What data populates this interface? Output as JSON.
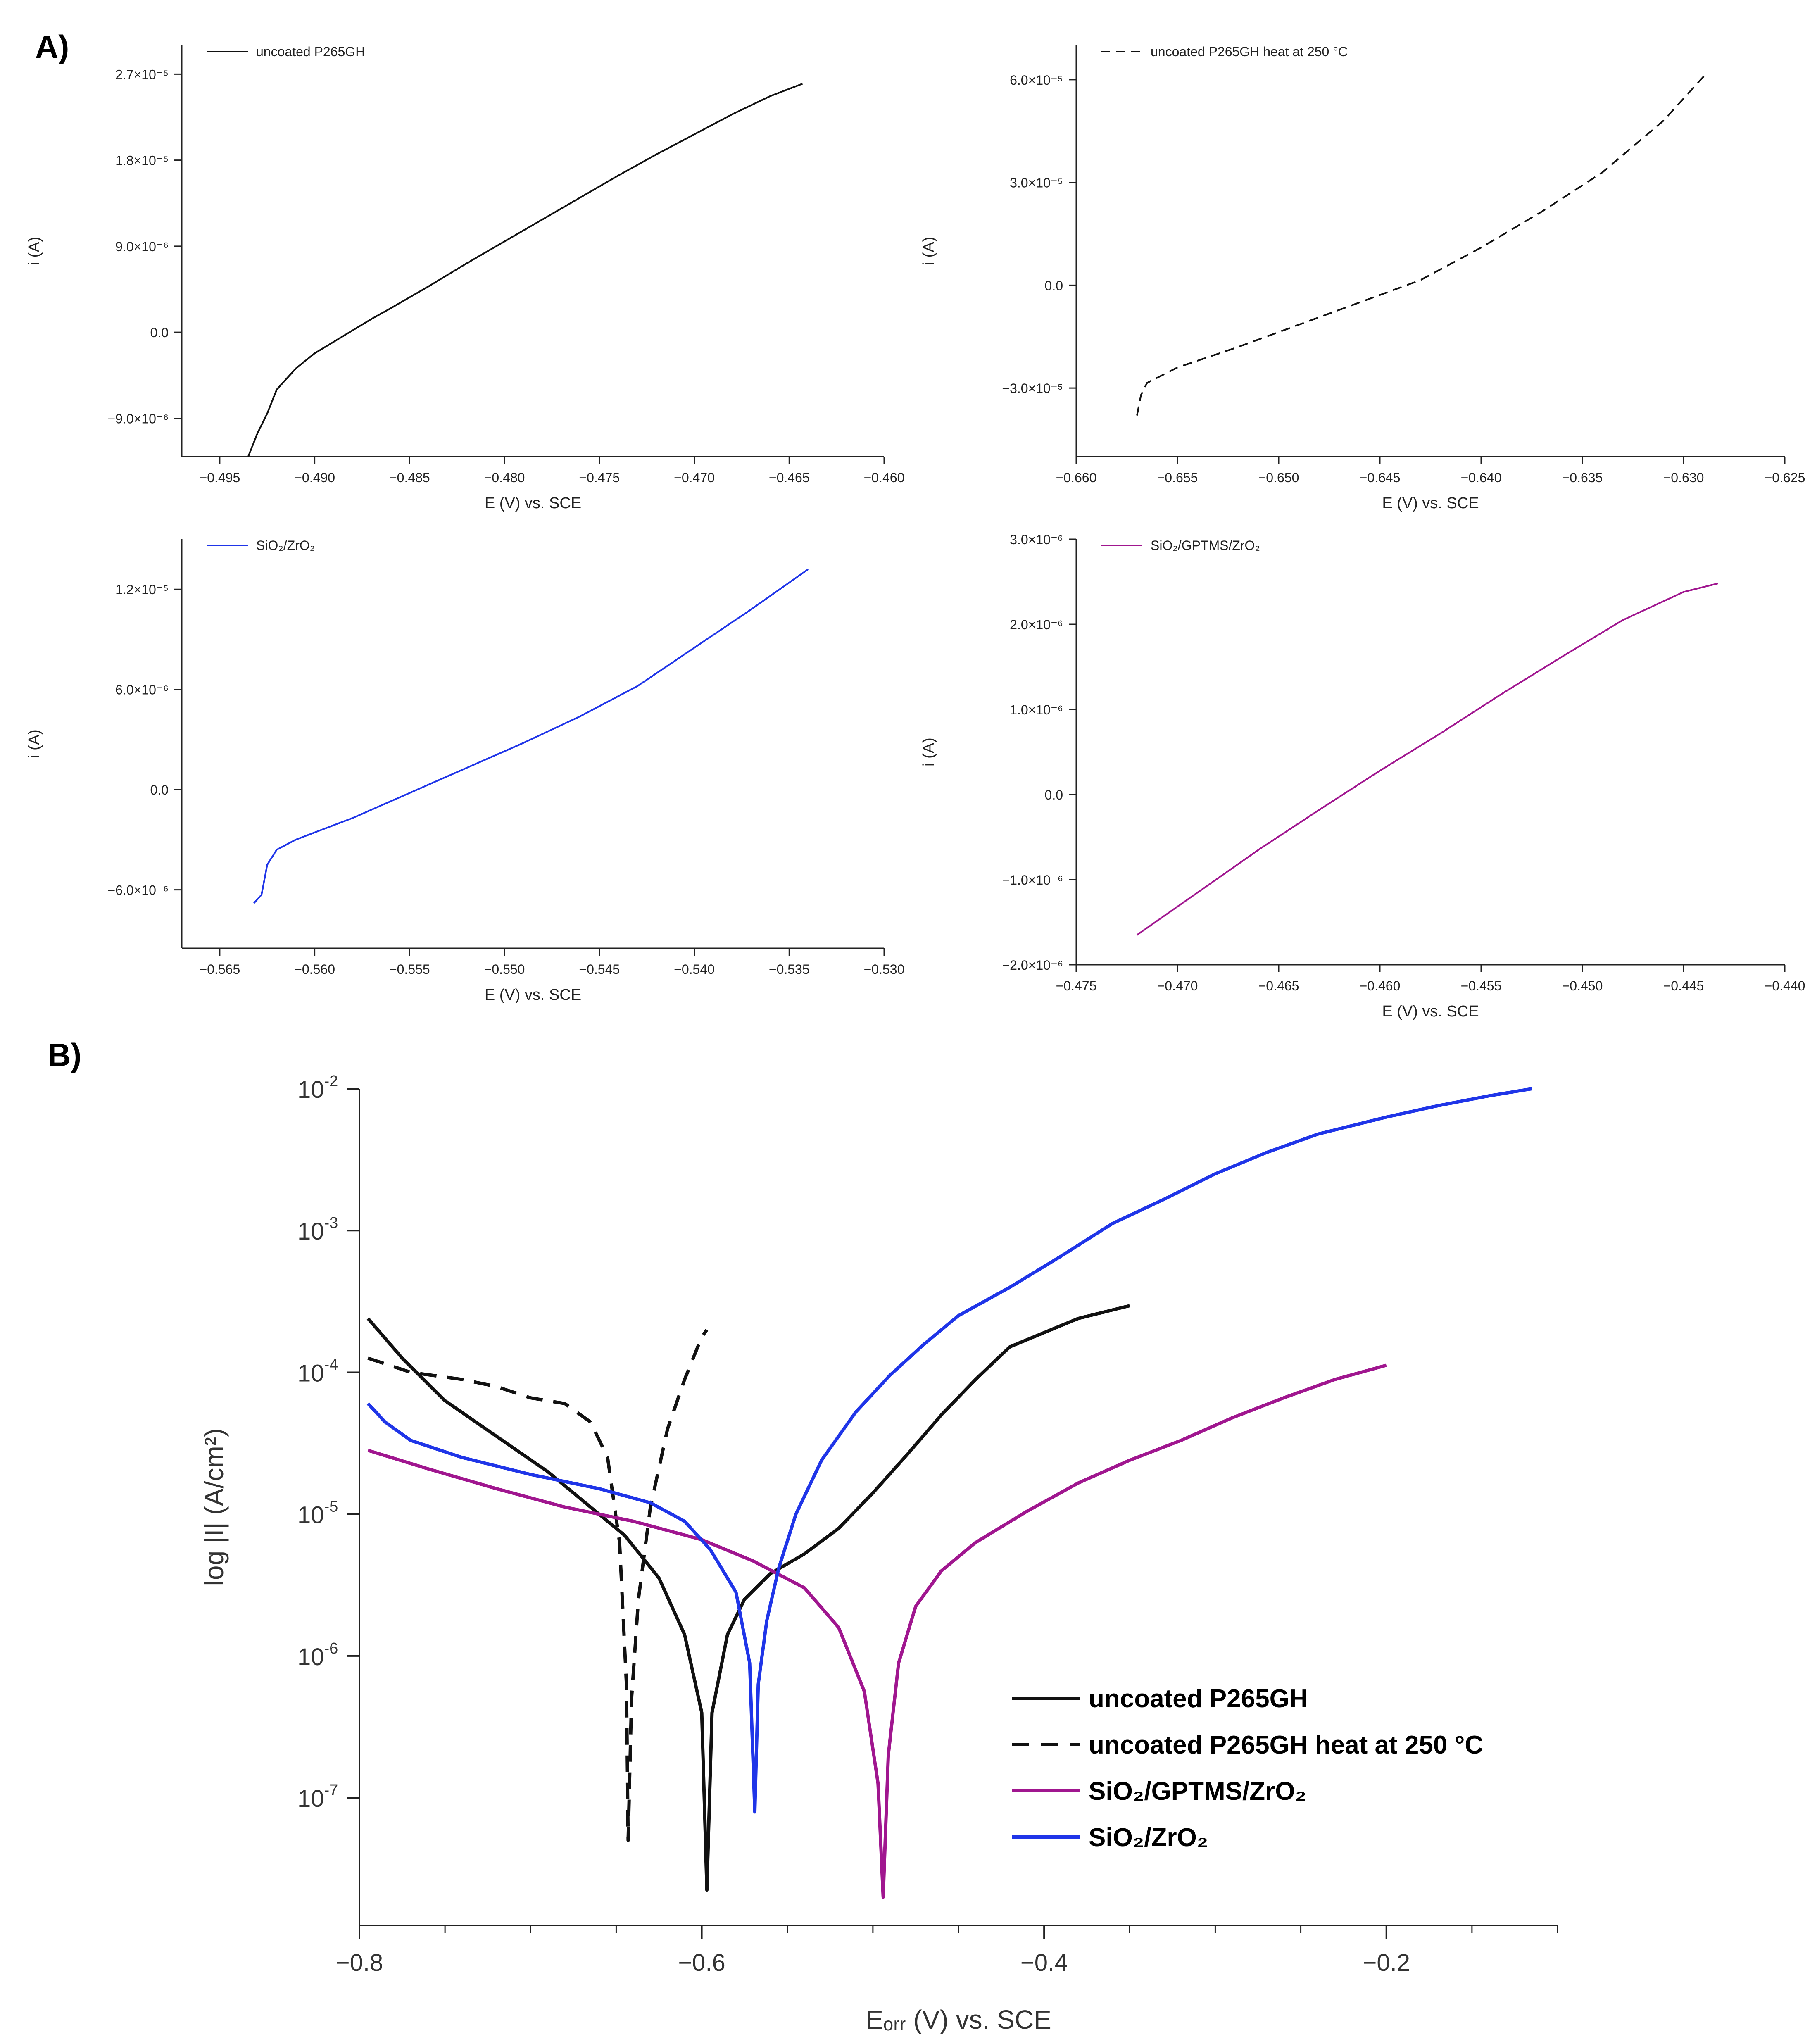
{
  "figure": {
    "panel_a_label": "A)",
    "panel_b_label": "B)"
  },
  "chart_data": [
    {
      "id": "a1",
      "type": "line",
      "title": "",
      "xlabel": "E (V) vs. SCE",
      "ylabel": "i (A)",
      "xlim": [
        -0.497,
        -0.46
      ],
      "ylim": [
        -1.3e-05,
        3e-05
      ],
      "xticks": [
        -0.495,
        -0.49,
        -0.485,
        -0.48,
        -0.475,
        -0.47,
        -0.465,
        -0.46
      ],
      "xtick_labels": [
        "−0.495",
        "−0.490",
        "−0.485",
        "−0.480",
        "−0.475",
        "−0.470",
        "−0.465",
        "−0.460"
      ],
      "yticks": [
        -9e-06,
        0,
        9e-06,
        1.8e-05,
        2.7e-05
      ],
      "ytick_labels": [
        "−9.0×10⁻⁶",
        "0.0",
        "9.0×10⁻⁶",
        "1.8×10⁻⁵",
        "2.7×10⁻⁵"
      ],
      "legend_position": "top-left",
      "series": [
        {
          "name": "uncoated P265GH",
          "color": "#111111",
          "dash": "solid",
          "x": [
            -0.4935,
            -0.493,
            -0.4925,
            -0.492,
            -0.491,
            -0.49,
            -0.489,
            -0.488,
            -0.487,
            -0.486,
            -0.484,
            -0.482,
            -0.48,
            -0.478,
            -0.476,
            -0.474,
            -0.472,
            -0.47,
            -0.468,
            -0.466,
            -0.4643
          ],
          "y": [
            -1.3e-05,
            -1.05e-05,
            -8.5e-06,
            -6e-06,
            -3.8e-06,
            -2.2e-06,
            -1e-06,
            2e-07,
            1.4e-06,
            2.5e-06,
            4.8e-06,
            7.2e-06,
            9.5e-06,
            1.18e-05,
            1.41e-05,
            1.64e-05,
            1.86e-05,
            2.07e-05,
            2.28e-05,
            2.47e-05,
            2.6e-05
          ]
        }
      ]
    },
    {
      "id": "a2",
      "type": "line",
      "title": "",
      "xlabel": "E (V) vs. SCE",
      "ylabel": "i (A)",
      "xlim": [
        -0.66,
        -0.625
      ],
      "ylim": [
        -5e-05,
        7e-05
      ],
      "xticks": [
        -0.66,
        -0.655,
        -0.65,
        -0.645,
        -0.64,
        -0.635,
        -0.63,
        -0.625
      ],
      "xtick_labels": [
        "−0.660",
        "−0.655",
        "−0.650",
        "−0.645",
        "−0.640",
        "−0.635",
        "−0.630",
        "−0.625"
      ],
      "yticks": [
        -3e-05,
        0,
        3e-05,
        6e-05
      ],
      "ytick_labels": [
        "−3.0×10⁻⁵",
        "0.0",
        "3.0×10⁻⁵",
        "6.0×10⁻⁵"
      ],
      "legend_position": "top-left",
      "series": [
        {
          "name": "uncoated P265GH heat at 250 °C",
          "color": "#111111",
          "dash": "dashed",
          "x": [
            -0.657,
            -0.6568,
            -0.6565,
            -0.655,
            -0.652,
            -0.649,
            -0.646,
            -0.643,
            -0.64,
            -0.637,
            -0.634,
            -0.631,
            -0.629
          ],
          "y": [
            -3.8e-05,
            -3.2e-05,
            -2.85e-05,
            -2.4e-05,
            -1.8e-05,
            -1.15e-05,
            -5e-06,
            1.5e-06,
            1.1e-05,
            2.15e-05,
            3.3e-05,
            4.8e-05,
            6.1e-05
          ]
        }
      ]
    },
    {
      "id": "a3",
      "type": "line",
      "title": "",
      "xlabel": "E (V) vs. SCE",
      "ylabel": "i (A)",
      "xlim": [
        -0.567,
        -0.53
      ],
      "ylim": [
        -9.5e-06,
        1.5e-05
      ],
      "xticks": [
        -0.565,
        -0.56,
        -0.555,
        -0.55,
        -0.545,
        -0.54,
        -0.535,
        -0.53
      ],
      "xtick_labels": [
        "−0.565",
        "−0.560",
        "−0.555",
        "−0.550",
        "−0.545",
        "−0.540",
        "−0.535",
        "−0.530"
      ],
      "yticks": [
        -6e-06,
        0,
        6e-06,
        1.2e-05
      ],
      "ytick_labels": [
        "−6.0×10⁻⁶",
        "0.0",
        "6.0×10⁻⁶",
        "1.2×10⁻⁵"
      ],
      "legend_position": "top-left",
      "series": [
        {
          "name": "SiO₂/ZrO₂",
          "color": "#1f35e8",
          "dash": "solid",
          "x": [
            -0.5632,
            -0.5628,
            -0.5625,
            -0.562,
            -0.561,
            -0.558,
            -0.555,
            -0.552,
            -0.549,
            -0.546,
            -0.543,
            -0.54,
            -0.537,
            -0.534
          ],
          "y": [
            -6.8e-06,
            -6.3e-06,
            -4.5e-06,
            -3.6e-06,
            -3e-06,
            -1.7e-06,
            -2e-07,
            1.3e-06,
            2.8e-06,
            4.4e-06,
            6.2e-06,
            8.5e-06,
            1.08e-05,
            1.32e-05
          ]
        }
      ]
    },
    {
      "id": "a4",
      "type": "line",
      "title": "",
      "xlabel": "E (V) vs. SCE",
      "ylabel": "i (A)",
      "xlim": [
        -0.475,
        -0.44
      ],
      "ylim": [
        -2e-06,
        3e-06
      ],
      "xticks": [
        -0.475,
        -0.47,
        -0.465,
        -0.46,
        -0.455,
        -0.45,
        -0.445,
        -0.44
      ],
      "xtick_labels": [
        "−0.475",
        "−0.470",
        "−0.465",
        "−0.460",
        "−0.455",
        "−0.450",
        "−0.445",
        "−0.440"
      ],
      "yticks": [
        -2e-06,
        -1e-06,
        0,
        1e-06,
        2e-06,
        3e-06
      ],
      "ytick_labels": [
        "−2.0×10⁻⁶",
        "−1.0×10⁻⁶",
        "0.0",
        "1.0×10⁻⁶",
        "2.0×10⁻⁶",
        "3.0×10⁻⁶"
      ],
      "legend_position": "top-left",
      "series": [
        {
          "name": "SiO₂/GPTMS/ZrO₂",
          "color": "#a0168f",
          "dash": "solid",
          "x": [
            -0.472,
            -0.469,
            -0.466,
            -0.463,
            -0.46,
            -0.457,
            -0.454,
            -0.451,
            -0.448,
            -0.445,
            -0.4433
          ],
          "y": [
            -1.65e-06,
            -1.15e-06,
            -6.5e-07,
            -1.8e-07,
            2.8e-07,
            7.2e-07,
            1.18e-06,
            1.62e-06,
            2.05e-06,
            2.38e-06,
            2.48e-06
          ]
        }
      ]
    },
    {
      "id": "b",
      "type": "line",
      "title": "",
      "xlabel": "Eₒᵣᵣ (V) vs. SCE",
      "ylabel": "log |I| (A/cm²)",
      "yscale": "log",
      "xlim": [
        -0.8,
        -0.1
      ],
      "ylim_log10": [
        -7.9,
        -2.0
      ],
      "xticks": [
        -0.8,
        -0.6,
        -0.4,
        -0.2
      ],
      "xtick_labels": [
        "−0.8",
        "−0.6",
        "−0.4",
        "−0.2"
      ],
      "yticks_log10": [
        -7,
        -6,
        -5,
        -4,
        -3,
        -2
      ],
      "ytick_base": "10",
      "ytick_exponents": [
        "-7",
        "-6",
        "-5",
        "-4",
        "-3",
        "-2"
      ],
      "legend_position": "bottom-right",
      "series": [
        {
          "name": "uncoated P265GH",
          "color": "#111111",
          "dash": "solid",
          "x": [
            -0.795,
            -0.775,
            -0.75,
            -0.72,
            -0.69,
            -0.665,
            -0.645,
            -0.625,
            -0.61,
            -0.6,
            -0.597,
            -0.594,
            -0.585,
            -0.575,
            -0.56,
            -0.54,
            -0.52,
            -0.5,
            -0.48,
            -0.46,
            -0.44,
            -0.42,
            -0.4,
            -0.38,
            -0.35
          ],
          "y": [
            -3.62,
            -3.9,
            -4.2,
            -4.45,
            -4.7,
            -4.95,
            -5.15,
            -5.45,
            -5.85,
            -6.4,
            -7.65,
            -6.4,
            -5.85,
            -5.6,
            -5.42,
            -5.28,
            -5.1,
            -4.85,
            -4.58,
            -4.3,
            -4.05,
            -3.82,
            -3.72,
            -3.62,
            -3.53
          ]
        },
        {
          "name": "uncoated P265GH heat at 250 °C",
          "color": "#111111",
          "dash": "dashed",
          "x": [
            -0.795,
            -0.77,
            -0.74,
            -0.72,
            -0.7,
            -0.68,
            -0.665,
            -0.655,
            -0.648,
            -0.644,
            -0.643,
            -0.641,
            -0.637,
            -0.63,
            -0.62,
            -0.61,
            -0.6,
            -0.597
          ],
          "y": [
            -3.9,
            -4.0,
            -4.05,
            -4.1,
            -4.18,
            -4.22,
            -4.35,
            -4.6,
            -5.2,
            -6.2,
            -7.3,
            -6.3,
            -5.6,
            -4.95,
            -4.4,
            -4.05,
            -3.75,
            -3.7
          ]
        },
        {
          "name": "SiO₂/GPTMS/ZrO₂",
          "color": "#a0168f",
          "dash": "solid",
          "x": [
            -0.795,
            -0.76,
            -0.72,
            -0.68,
            -0.64,
            -0.6,
            -0.57,
            -0.54,
            -0.52,
            -0.505,
            -0.497,
            -0.494,
            -0.491,
            -0.485,
            -0.475,
            -0.46,
            -0.44,
            -0.41,
            -0.38,
            -0.35,
            -0.32,
            -0.29,
            -0.26,
            -0.23,
            -0.2
          ],
          "y": [
            -4.55,
            -4.68,
            -4.82,
            -4.95,
            -5.05,
            -5.18,
            -5.33,
            -5.52,
            -5.8,
            -6.25,
            -6.9,
            -7.7,
            -6.7,
            -6.05,
            -5.65,
            -5.4,
            -5.2,
            -4.98,
            -4.78,
            -4.62,
            -4.48,
            -4.32,
            -4.18,
            -4.05,
            -3.95
          ]
        },
        {
          "name": "SiO₂/ZrO₂",
          "color": "#1f35e8",
          "dash": "solid",
          "x": [
            -0.795,
            -0.785,
            -0.77,
            -0.74,
            -0.7,
            -0.66,
            -0.63,
            -0.61,
            -0.595,
            -0.58,
            -0.572,
            -0.569,
            -0.567,
            -0.562,
            -0.555,
            -0.545,
            -0.53,
            -0.51,
            -0.49,
            -0.47,
            -0.45,
            -0.42,
            -0.39,
            -0.36,
            -0.33,
            -0.3,
            -0.27,
            -0.24,
            -0.2,
            -0.17,
            -0.14,
            -0.115
          ],
          "y": [
            -4.22,
            -4.35,
            -4.48,
            -4.6,
            -4.72,
            -4.82,
            -4.92,
            -5.05,
            -5.25,
            -5.55,
            -6.05,
            -7.1,
            -6.2,
            -5.75,
            -5.38,
            -5.0,
            -4.62,
            -4.28,
            -4.02,
            -3.8,
            -3.6,
            -3.4,
            -3.18,
            -2.95,
            -2.78,
            -2.6,
            -2.45,
            -2.32,
            -2.2,
            -2.12,
            -2.05,
            -2.0
          ]
        }
      ]
    }
  ]
}
